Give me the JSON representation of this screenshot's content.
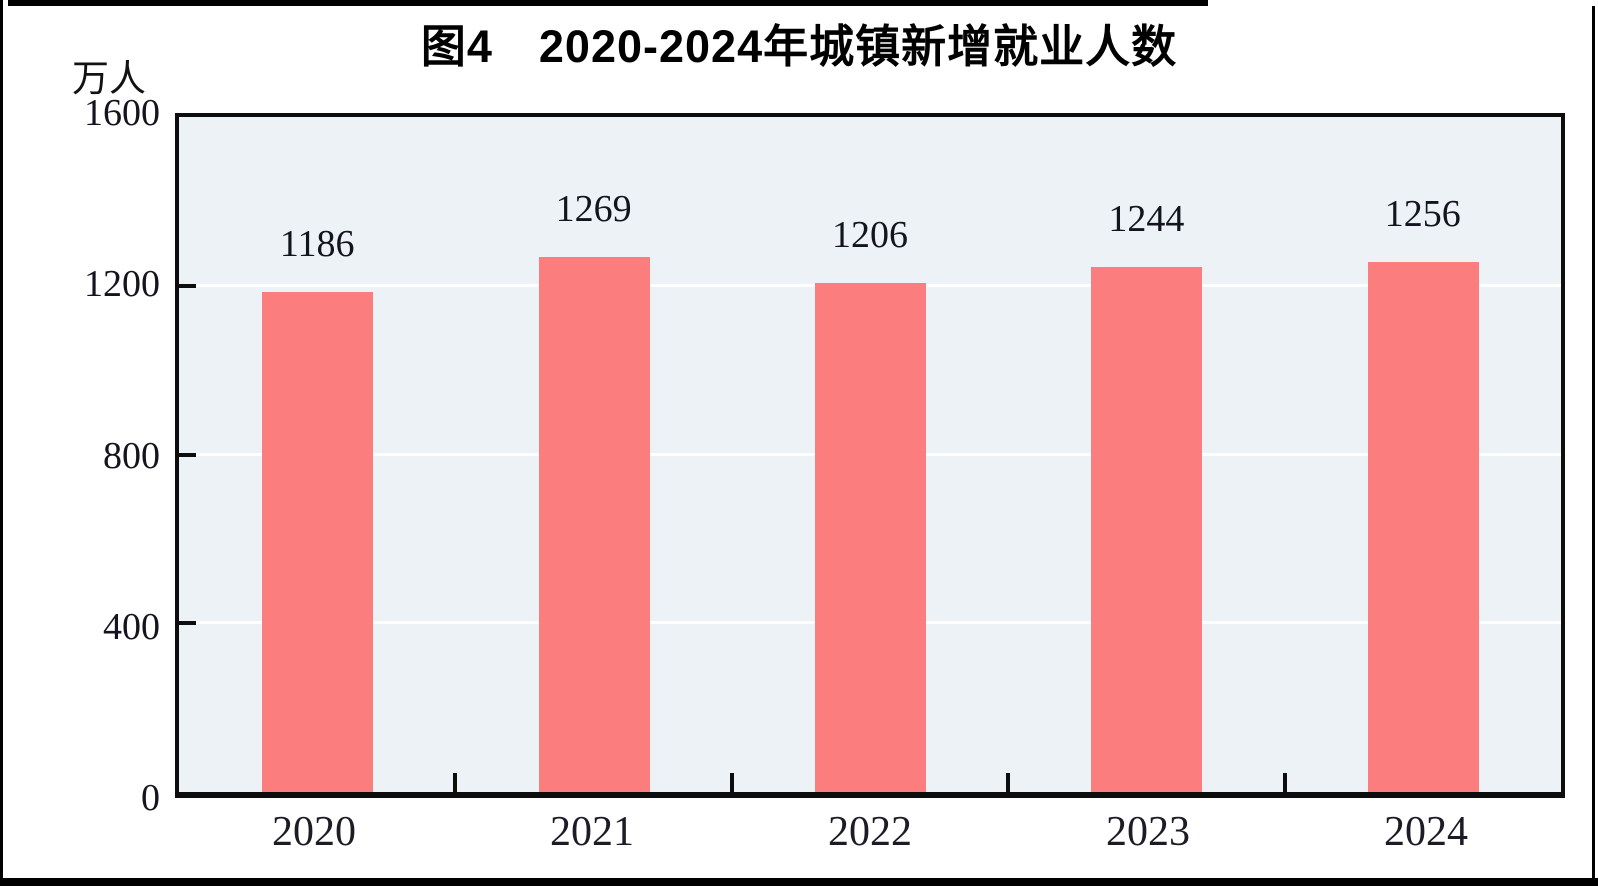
{
  "page": {
    "top_rule": "black horizontal rule",
    "bottom_rule": "black horizontal rule",
    "side_rules": "thin black vertical page borders"
  },
  "chart_data": {
    "type": "bar",
    "title": "图4　2020-2024年城镇新增就业人数",
    "unit": "万人",
    "categories": [
      "2020",
      "2021",
      "2022",
      "2023",
      "2024"
    ],
    "values": [
      1186,
      1269,
      1206,
      1244,
      1256
    ],
    "xlabel": "",
    "ylabel": "万人",
    "ylim": [
      0,
      1600
    ],
    "yticks": [
      0,
      400,
      800,
      1200,
      1600
    ],
    "gridlines": [
      400,
      800,
      1200
    ],
    "grid": "horizontal white lines on shaded panel",
    "legend": "none",
    "value_labels_shown": true,
    "bar_color": "#FC7D7D",
    "plot_bg": "#ECF2F6",
    "axis_color": "#0d0d0d",
    "text_color": "#14141e"
  }
}
